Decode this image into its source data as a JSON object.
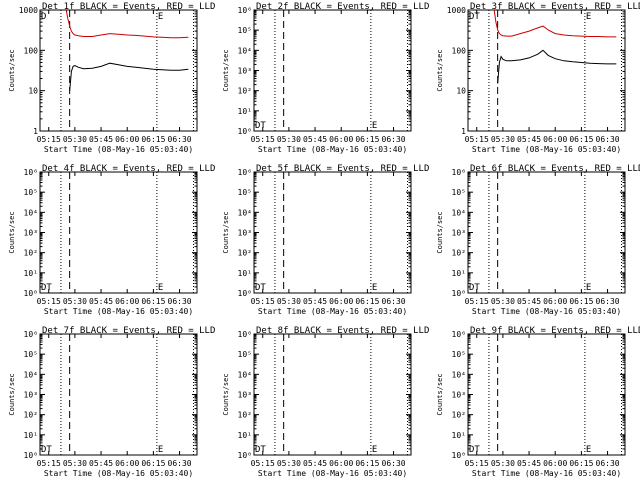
{
  "chart_data": [
    {
      "type": "line",
      "title": "Det 1f BLACK = Events, RED = LLD",
      "xlabel": "Start Time (08-May-16 05:03:40)",
      "ylabel": "Counts/sec",
      "yscale": "log",
      "ylim": [
        1,
        1000
      ],
      "ytick_labels": [
        "1",
        "10",
        "100",
        "1000"
      ],
      "xtick_labels": [
        "05:15",
        "05:30",
        "05:45",
        "06:00",
        "06:15",
        "06:30"
      ],
      "markers": [
        "D",
        "E"
      ],
      "grid": false,
      "series": [
        {
          "name": "LLD",
          "color": "#cc0000",
          "x": [
            "05:25",
            "05:26",
            "05:27",
            "05:28",
            "05:29",
            "05:30",
            "05:32",
            "05:35",
            "05:40",
            "05:45",
            "05:50",
            "05:55",
            "06:00",
            "06:05",
            "06:10",
            "06:15",
            "06:20",
            "06:25",
            "06:30",
            "06:35"
          ],
          "values": [
            1000,
            600,
            400,
            300,
            260,
            240,
            230,
            220,
            220,
            240,
            260,
            250,
            240,
            235,
            225,
            215,
            210,
            205,
            205,
            210
          ]
        },
        {
          "name": "Events",
          "color": "#000000",
          "x": [
            "05:27",
            "05:28",
            "05:29",
            "05:30",
            "05:32",
            "05:35",
            "05:40",
            "05:45",
            "05:50",
            "05:55",
            "06:00",
            "06:05",
            "06:10",
            "06:15",
            "06:20",
            "06:25",
            "06:30",
            "06:35"
          ],
          "values": [
            10,
            30,
            40,
            42,
            38,
            35,
            36,
            40,
            48,
            44,
            40,
            38,
            36,
            34,
            33,
            32,
            32,
            34
          ]
        }
      ]
    },
    {
      "type": "line",
      "title": "Det 2f BLACK = Events, RED = LLD",
      "xlabel": "Start Time (08-May-16 05:03:40)",
      "ylabel": "Counts/sec",
      "yscale": "log",
      "ylim": [
        1,
        1000000
      ],
      "ytick_labels": [
        "10⁰",
        "10¹",
        "10²",
        "10³",
        "10⁴",
        "10⁵",
        "10⁶"
      ],
      "xtick_labels": [
        "05:15",
        "05:30",
        "05:45",
        "06:00",
        "06:15",
        "06:30"
      ],
      "markers": [
        "DT",
        "E"
      ],
      "grid": false,
      "series": []
    },
    {
      "type": "line",
      "title": "Det 3f BLACK = Events, RED = LLD",
      "xlabel": "Start Time (08-May-16 05:03:40)",
      "ylabel": "Counts/sec",
      "yscale": "log",
      "ylim": [
        1,
        1000
      ],
      "ytick_labels": [
        "1",
        "10",
        "100",
        "1000"
      ],
      "xtick_labels": [
        "05:15",
        "05:30",
        "05:45",
        "06:00",
        "06:15",
        "06:30"
      ],
      "markers": [
        "DT",
        "E"
      ],
      "grid": false,
      "series": [
        {
          "name": "LLD",
          "color": "#cc0000",
          "x": [
            "05:25",
            "05:26",
            "05:27",
            "05:28",
            "05:29",
            "05:30",
            "05:32",
            "05:35",
            "05:40",
            "05:45",
            "05:50",
            "05:53",
            "05:56",
            "06:00",
            "06:05",
            "06:10",
            "06:15",
            "06:20",
            "06:25",
            "06:30",
            "06:35"
          ],
          "values": [
            1000,
            500,
            320,
            260,
            240,
            230,
            225,
            225,
            260,
            300,
            360,
            400,
            320,
            260,
            240,
            230,
            225,
            220,
            220,
            215,
            215
          ]
        },
        {
          "name": "Events",
          "color": "#000000",
          "x": [
            "05:27",
            "05:28",
            "05:29",
            "05:30",
            "05:32",
            "05:35",
            "05:40",
            "05:45",
            "05:50",
            "05:53",
            "05:56",
            "06:00",
            "06:05",
            "06:10",
            "06:15",
            "06:20",
            "06:25",
            "06:30",
            "06:35"
          ],
          "values": [
            15,
            50,
            70,
            60,
            55,
            55,
            58,
            65,
            80,
            100,
            75,
            62,
            55,
            52,
            50,
            48,
            47,
            46,
            46
          ]
        }
      ]
    },
    {
      "type": "line",
      "title": "Det 4f BLACK = Events, RED = LLD",
      "xlabel": "Start Time (08-May-16 05:03:40)",
      "ylabel": "Counts/sec",
      "yscale": "log",
      "ylim": [
        1,
        1000000
      ],
      "ytick_labels": [
        "10⁰",
        "10¹",
        "10²",
        "10³",
        "10⁴",
        "10⁵",
        "10⁶"
      ],
      "xtick_labels": [
        "05:15",
        "05:30",
        "05:45",
        "06:00",
        "06:15",
        "06:30"
      ],
      "markers": [
        "DT",
        "E"
      ],
      "grid": false,
      "series": []
    },
    {
      "type": "line",
      "title": "Det 5f BLACK = Events, RED = LLD",
      "xlabel": "Start Time (08-May-16 05:03:40)",
      "ylabel": "Counts/sec",
      "yscale": "log",
      "ylim": [
        1,
        1000000
      ],
      "ytick_labels": [
        "10⁰",
        "10¹",
        "10²",
        "10³",
        "10⁴",
        "10⁵",
        "10⁶"
      ],
      "xtick_labels": [
        "05:15",
        "05:30",
        "05:45",
        "06:00",
        "06:15",
        "06:30"
      ],
      "markers": [
        "DT",
        "E"
      ],
      "grid": false,
      "series": []
    },
    {
      "type": "line",
      "title": "Det 6f BLACK = Events, RED = LLD",
      "xlabel": "Start Time (08-May-16 05:03:40)",
      "ylabel": "Counts/sec",
      "yscale": "log",
      "ylim": [
        1,
        1000000
      ],
      "ytick_labels": [
        "10⁰",
        "10¹",
        "10²",
        "10³",
        "10⁴",
        "10⁵",
        "10⁶"
      ],
      "xtick_labels": [
        "05:15",
        "05:30",
        "05:45",
        "06:00",
        "06:15",
        "06:30"
      ],
      "markers": [
        "DT",
        "E"
      ],
      "grid": false,
      "series": []
    },
    {
      "type": "line",
      "title": "Det 7f BLACK = Events, RED = LLD",
      "xlabel": "Start Time (08-May-16 05:03:40)",
      "ylabel": "Counts/sec",
      "yscale": "log",
      "ylim": [
        1,
        1000000
      ],
      "ytick_labels": [
        "10⁰",
        "10¹",
        "10²",
        "10³",
        "10⁴",
        "10⁵",
        "10⁶"
      ],
      "xtick_labels": [
        "05:15",
        "05:30",
        "05:45",
        "06:00",
        "06:15",
        "06:30"
      ],
      "markers": [
        "DT",
        "E"
      ],
      "grid": false,
      "series": []
    },
    {
      "type": "line",
      "title": "Det 8f BLACK = Events, RED = LLD",
      "xlabel": "Start Time (08-May-16 05:03:40)",
      "ylabel": "Counts/sec",
      "yscale": "log",
      "ylim": [
        1,
        1000000
      ],
      "ytick_labels": [
        "10⁰",
        "10¹",
        "10²",
        "10³",
        "10⁴",
        "10⁵",
        "10⁶"
      ],
      "xtick_labels": [
        "05:15",
        "05:30",
        "05:45",
        "06:00",
        "06:15",
        "06:30"
      ],
      "markers": [
        "DT",
        "E"
      ],
      "grid": false,
      "series": []
    },
    {
      "type": "line",
      "title": "Det 9f BLACK = Events, RED = LLD",
      "xlabel": "Start Time (08-May-16 05:03:40)",
      "ylabel": "Counts/sec",
      "yscale": "log",
      "ylim": [
        1,
        1000000
      ],
      "ytick_labels": [
        "10⁰",
        "10¹",
        "10²",
        "10³",
        "10⁴",
        "10⁵",
        "10⁶"
      ],
      "xtick_labels": [
        "05:15",
        "05:30",
        "05:45",
        "06:00",
        "06:15",
        "06:30"
      ],
      "markers": [
        "DT",
        "E"
      ],
      "grid": false,
      "series": []
    }
  ],
  "time_range": [
    "05:10",
    "06:40"
  ],
  "vertical_lines": [
    {
      "style": "dotted",
      "time": "05:22"
    },
    {
      "style": "dashed",
      "time": "05:27"
    },
    {
      "style": "dotted",
      "time": "06:17"
    },
    {
      "style": "dotted",
      "time": "06:38"
    }
  ]
}
